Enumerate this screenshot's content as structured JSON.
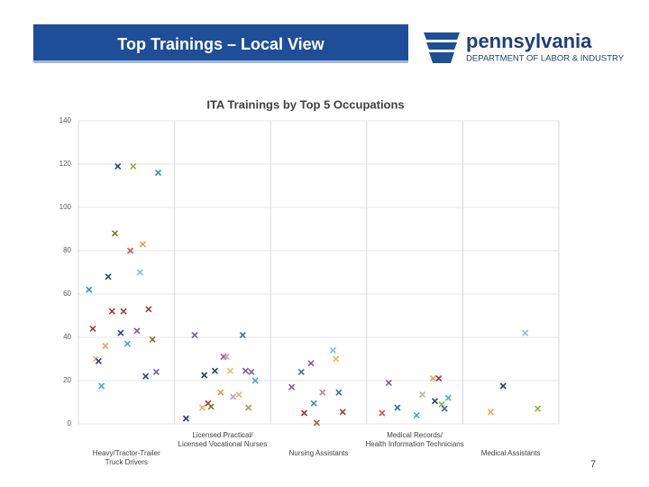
{
  "header": {
    "title": "Top Trainings – Local View",
    "logo_name": "pennsylvania",
    "logo_subtitle": "DEPARTMENT OF LABOR & INDUSTRY"
  },
  "page_number": "7",
  "chart_data": {
    "type": "scatter",
    "title": "ITA Trainings by Top 5 Occupations",
    "categories": [
      [
        "Heavy/Tractor-Trailer",
        "Truck Drivers"
      ],
      [
        "Licensed Practical/",
        "Licensed Vocational Nurses"
      ],
      [
        "Nursing Assistants"
      ],
      [
        "Medical Records/",
        "Health Information Technicians"
      ],
      [
        "Medical Assistants"
      ]
    ],
    "xlim": [
      0,
      5
    ],
    "ylim": [
      0,
      140
    ],
    "yticks": [
      0,
      20,
      40,
      60,
      80,
      100,
      120,
      140
    ],
    "grid": true,
    "series": [
      {
        "x": [
          0.11,
          0.15,
          0.18,
          0.21,
          0.24,
          0.28,
          0.31,
          0.35,
          0.38,
          0.41,
          0.44,
          0.47,
          0.51,
          0.54,
          0.57,
          0.61,
          0.64,
          0.67,
          0.7,
          0.73,
          0.77,
          0.81,
          0.83,
          1.12,
          1.21,
          1.29,
          1.31,
          1.35,
          1.38,
          1.42,
          1.48,
          1.51,
          1.54,
          1.58,
          1.61,
          1.67,
          1.71,
          1.74,
          1.77,
          1.8,
          1.84,
          2.22,
          2.32,
          2.35,
          2.42,
          2.45,
          2.48,
          2.54,
          2.65,
          2.68,
          2.71,
          2.75,
          3.16,
          3.23,
          3.32,
          3.52,
          3.58,
          3.69,
          3.71,
          3.75,
          3.78,
          3.81,
          3.85,
          4.29,
          4.42,
          4.65,
          4.78
        ],
        "values": [
          62,
          44,
          30,
          29,
          17.5,
          36,
          68,
          52,
          88,
          119,
          42,
          52,
          37,
          80,
          119,
          43,
          70,
          83,
          22,
          53,
          39,
          24,
          116,
          2.5,
          41,
          7.5,
          22.5,
          9.5,
          8,
          24.5,
          14.5,
          31,
          31,
          24.5,
          12.5,
          13.5,
          41,
          24.5,
          7.5,
          24,
          20,
          17,
          24,
          5,
          28,
          9.5,
          0.5,
          14.5,
          34,
          30,
          14.5,
          5.5,
          5,
          19,
          7.5,
          4,
          13.5,
          21,
          10.5,
          21,
          9,
          7,
          12,
          5.5,
          17.5,
          42,
          7
        ],
        "colors": [
          "#3a8fb0",
          "#9e3a38",
          "#e4c27a",
          "#264478",
          "#4bacc6",
          "#e8a35a",
          "#264478",
          "#9e3a38",
          "#7a7a2a",
          "#264478",
          "#264478",
          "#9e3a38",
          "#5b9bd5",
          "#d9534f",
          "#8fb44a",
          "#7a5c9e",
          "#7fc4dc",
          "#e0a050",
          "#264478",
          "#9e3a38",
          "#7a7a2a",
          "#7a5c9e",
          "#3a8fb0",
          "#264478",
          "#7a5c9e",
          "#e0b060",
          "#264478",
          "#9e3a38",
          "#7a7a2a",
          "#264478",
          "#e0a050",
          "#7a5c9e",
          "#c9a0c0",
          "#e0c060",
          "#c9a0c0",
          "#e8b080",
          "#3a6ea5",
          "#7a5c9e",
          "#b0a050",
          "#7a5c9e",
          "#4bacc6",
          "#7a5c9e",
          "#3a6ea5",
          "#9e3a38",
          "#7a5c9e",
          "#3a8fb0",
          "#b06020",
          "#d08080",
          "#7fc4dc",
          "#e0c060",
          "#3a6ea5",
          "#9e3a38",
          "#d9534f",
          "#7a5c9e",
          "#3a6ea5",
          "#4bacc6",
          "#b0c080",
          "#e8a35a",
          "#264478",
          "#9e3a38",
          "#8fb44a",
          "#3a6ea5",
          "#4bacc6",
          "#e8a35a",
          "#264478",
          "#7fc4dc",
          "#8fb44a"
        ]
      }
    ]
  }
}
